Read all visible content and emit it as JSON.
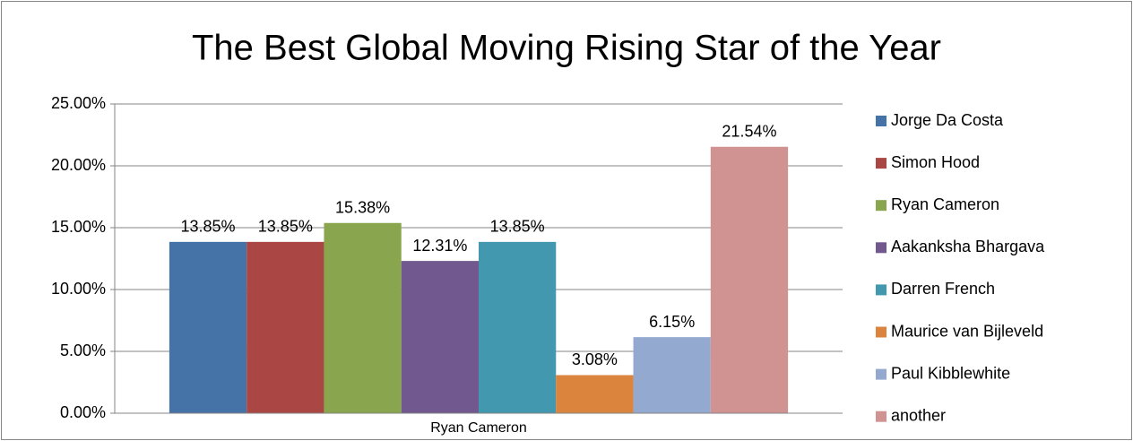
{
  "chart_data": {
    "type": "bar",
    "title": "The Best Global Moving Rising Star of the Year",
    "categories": [
      "Ryan Cameron"
    ],
    "series": [
      {
        "name": "Jorge Da Costa",
        "color": "#4572a7",
        "values": [
          13.85
        ],
        "value_labels": [
          "13.85%"
        ]
      },
      {
        "name": "Simon Hood",
        "color": "#aa4643",
        "values": [
          13.85
        ],
        "value_labels": [
          "13.85%"
        ]
      },
      {
        "name": "Ryan Cameron",
        "color": "#89a54e",
        "values": [
          15.38
        ],
        "value_labels": [
          "15.38%"
        ]
      },
      {
        "name": "Aakanksha Bhargava",
        "color": "#71588f",
        "values": [
          12.31
        ],
        "value_labels": [
          "12.31%"
        ]
      },
      {
        "name": "Darren French",
        "color": "#4198af",
        "values": [
          13.85
        ],
        "value_labels": [
          "13.85%"
        ]
      },
      {
        "name": "Maurice van Bijleveld",
        "color": "#db843d",
        "values": [
          3.08
        ],
        "value_labels": [
          "3.08%"
        ]
      },
      {
        "name": "Paul Kibblewhite",
        "color": "#93a9cf",
        "values": [
          6.15
        ],
        "value_labels": [
          "6.15%"
        ]
      },
      {
        "name": "another",
        "color": "#d19392",
        "values": [
          21.54
        ],
        "value_labels": [
          "21.54%"
        ]
      }
    ],
    "ylim": [
      0,
      25
    ],
    "yticks": [
      {
        "value": 0,
        "label": "0.00%"
      },
      {
        "value": 5,
        "label": "5.00%"
      },
      {
        "value": 10,
        "label": "10.00%"
      },
      {
        "value": 15,
        "label": "15.00%"
      },
      {
        "value": 20,
        "label": "20.00%"
      },
      {
        "value": 25,
        "label": "25.00%"
      }
    ],
    "grid": true,
    "legend": "right"
  }
}
